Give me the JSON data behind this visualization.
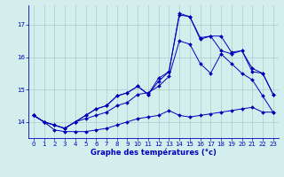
{
  "title": "Graphe des températures (°c)",
  "background_color": "#d4eeee",
  "grid_color": "#aacccc",
  "line_color": "#0000bb",
  "xlim": [
    -0.5,
    23.5
  ],
  "ylim": [
    13.5,
    17.6
  ],
  "yticks": [
    14,
    15,
    16,
    17
  ],
  "xticks": [
    0,
    1,
    2,
    3,
    4,
    5,
    6,
    7,
    8,
    9,
    10,
    11,
    12,
    13,
    14,
    15,
    16,
    17,
    18,
    19,
    20,
    21,
    22,
    23
  ],
  "series": [
    [
      14.2,
      14.0,
      13.75,
      13.7,
      13.7,
      13.7,
      13.75,
      13.8,
      13.9,
      14.0,
      14.1,
      14.15,
      14.2,
      14.35,
      14.2,
      14.15,
      14.2,
      14.25,
      14.3,
      14.35,
      14.4,
      14.45,
      14.3,
      14.3
    ],
    [
      14.2,
      14.0,
      13.9,
      13.8,
      14.0,
      14.1,
      14.2,
      14.3,
      14.5,
      14.6,
      14.85,
      14.9,
      15.1,
      15.4,
      16.5,
      16.4,
      15.8,
      15.5,
      16.1,
      15.8,
      15.5,
      15.3,
      14.8,
      14.3
    ],
    [
      14.2,
      14.0,
      13.9,
      13.8,
      14.0,
      14.2,
      14.4,
      14.5,
      14.8,
      14.9,
      15.1,
      14.85,
      15.25,
      15.55,
      17.3,
      17.25,
      16.55,
      16.65,
      16.2,
      16.1,
      16.2,
      15.55,
      15.5,
      14.85
    ],
    [
      14.2,
      14.0,
      13.9,
      13.8,
      14.0,
      14.2,
      14.4,
      14.5,
      14.8,
      14.9,
      15.1,
      14.85,
      15.35,
      15.55,
      17.35,
      17.25,
      16.6,
      16.65,
      16.65,
      16.15,
      16.2,
      15.65,
      15.5,
      14.85
    ]
  ],
  "figsize": [
    3.2,
    2.0
  ],
  "dpi": 100
}
